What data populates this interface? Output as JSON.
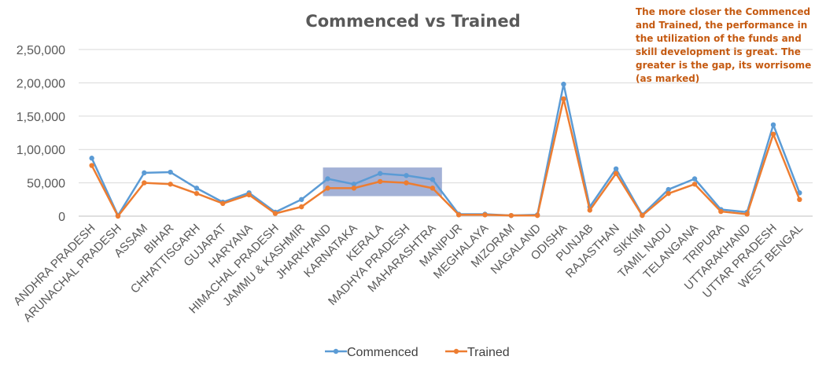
{
  "chart_data": {
    "type": "line",
    "title": "Commenced vs Trained",
    "xlabel": "",
    "ylabel": "",
    "ylim": [
      0,
      250000
    ],
    "yticks": [
      "0",
      "50,000",
      "1,00,000",
      "1,50,000",
      "2,00,000",
      "2,50,000"
    ],
    "ytick_values": [
      0,
      50000,
      100000,
      150000,
      200000,
      250000
    ],
    "grid": true,
    "legend": "bottom",
    "categories": [
      "ANDHRA PRADESH",
      "ARUNACHAL PRADESH",
      "ASSAM",
      "BIHAR",
      "CHHATTISGARH",
      "GUJARAT",
      "HARYANA",
      "HIMACHAL PRADESH",
      "JAMMU & KASHMIR",
      "JHARKHAND",
      "KARNATAKA",
      "KERALA",
      "MADHYA PRADESH",
      "MAHARASHTRA",
      "MANIPUR",
      "MEGHALAYA",
      "MIZORAM",
      "NAGALAND",
      "ODISHA",
      "PUNJAB",
      "RAJASTHAN",
      "SIKKIM",
      "TAMIL NADU",
      "TELANGANA",
      "TRIPURA",
      "UTTARAKHAND",
      "UTTAR PRADESH",
      "WEST BENGAL"
    ],
    "series": [
      {
        "name": "Commenced",
        "color": "#5B9BD5",
        "values": [
          87000,
          1000,
          65000,
          66000,
          42000,
          21000,
          35000,
          6000,
          25000,
          56000,
          48000,
          64000,
          61000,
          55000,
          3000,
          3000,
          1000,
          2000,
          198000,
          14000,
          71000,
          2000,
          40000,
          56000,
          10000,
          6000,
          137000,
          35000
        ]
      },
      {
        "name": "Trained",
        "color": "#ED7D31",
        "values": [
          76000,
          0,
          50000,
          48000,
          34000,
          19000,
          32000,
          4000,
          14000,
          42000,
          42000,
          52000,
          50000,
          42000,
          2000,
          2000,
          1000,
          1000,
          176000,
          9000,
          64000,
          1000,
          34000,
          48000,
          7000,
          3000,
          123000,
          25000
        ]
      }
    ],
    "annotations": [
      {
        "text": "The more closer the Commenced and Trained, the performance in the utilization of the funds and skill development is great. The greater is the gap, its worrisome (as marked)",
        "color": "#C55A11"
      }
    ],
    "highlight": {
      "from_category": "JHARKHAND",
      "to_category": "MAHARASHTRA",
      "y_range": [
        30000,
        73000
      ],
      "color": "#8497C8"
    }
  }
}
